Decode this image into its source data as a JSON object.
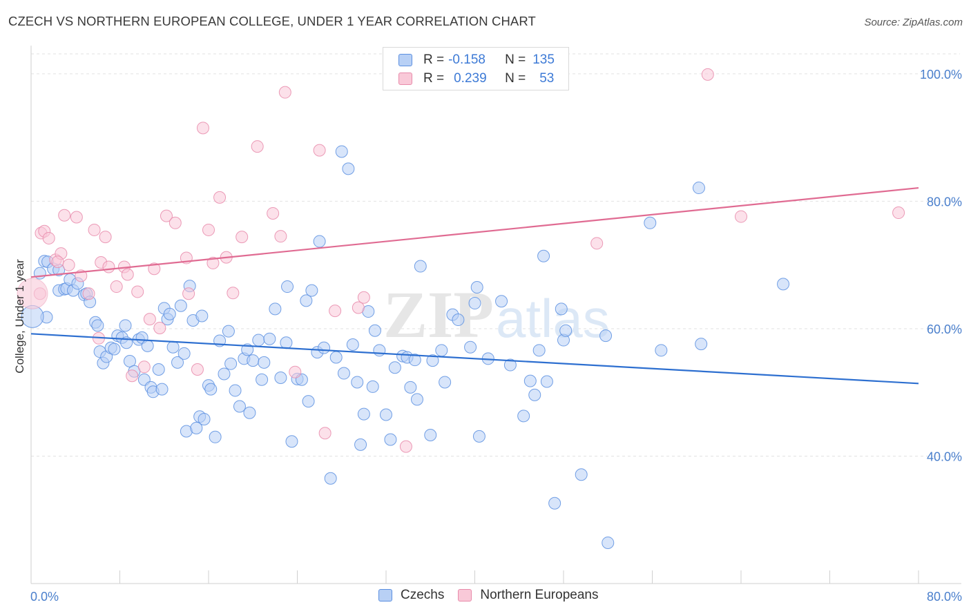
{
  "title": "CZECH VS NORTHERN EUROPEAN COLLEGE, UNDER 1 YEAR CORRELATION CHART",
  "source": "Source: ZipAtlas.com",
  "watermark": {
    "zip": "ZIP",
    "atlas": "atlas"
  },
  "legend": {
    "rows": [
      {
        "r_label": "R =",
        "r_value": "-0.158",
        "n_label": "N =",
        "n_value": "135",
        "color": "#5b8fe0",
        "fill": "#b8d0f5"
      },
      {
        "r_label": "R =",
        "r_value": "0.239",
        "n_label": "N =",
        "n_value": "53",
        "color": "#e88aaa",
        "fill": "#f9c9d8"
      }
    ]
  },
  "bottom_legend": [
    {
      "label": "Czechs",
      "color": "#5b8fe0",
      "fill": "#b8d0f5"
    },
    {
      "label": "Northern Europeans",
      "color": "#e88aaa",
      "fill": "#f9c9d8"
    }
  ],
  "chart_data": {
    "type": "scatter",
    "title": "CZECH VS NORTHERN EUROPEAN COLLEGE, UNDER 1 YEAR CORRELATION CHART",
    "ylabel": "College, Under 1 year",
    "xlabel": "",
    "xlim": [
      0,
      80
    ],
    "ylim": [
      20,
      104
    ],
    "x_tick_labels": [
      "0.0%",
      "80.0%"
    ],
    "y_ticks": [
      40,
      60,
      80,
      100
    ],
    "y_tick_labels": [
      "40.0%",
      "60.0%",
      "80.0%",
      "100.0%"
    ],
    "grid": true,
    "series": [
      {
        "name": "Czechs",
        "color": "#5b8fe0",
        "fill": "#b8d0f5",
        "trend": {
          "x": [
            0,
            80
          ],
          "y": [
            59.2,
            51.4
          ]
        },
        "points": [
          [
            0.8,
            68.7
          ],
          [
            1.2,
            70.6
          ],
          [
            1.5,
            70.5
          ],
          [
            2,
            69.4
          ],
          [
            2.5,
            69.2
          ],
          [
            2.5,
            66
          ],
          [
            3,
            66.2
          ],
          [
            3.2,
            66.3
          ],
          [
            3.5,
            67.7
          ],
          [
            3.8,
            66
          ],
          [
            4.2,
            67.1
          ],
          [
            4.8,
            65.3
          ],
          [
            5,
            65.5
          ],
          [
            5.3,
            64.2
          ],
          [
            5.8,
            61
          ],
          [
            6,
            60.5
          ],
          [
            6.2,
            56.4
          ],
          [
            6.5,
            54.6
          ],
          [
            6.8,
            55.6
          ],
          [
            7.2,
            57
          ],
          [
            7.5,
            56.8
          ],
          [
            7.8,
            58.9
          ],
          [
            8.2,
            58.6
          ],
          [
            8.5,
            60.5
          ],
          [
            8.6,
            57.8
          ],
          [
            8.9,
            54.9
          ],
          [
            9.3,
            53.3
          ],
          [
            9.7,
            58.3
          ],
          [
            10,
            58.6
          ],
          [
            10.2,
            52
          ],
          [
            10.5,
            57.3
          ],
          [
            10.8,
            50.8
          ],
          [
            11,
            50.1
          ],
          [
            11.5,
            53.6
          ],
          [
            11.8,
            50.5
          ],
          [
            12,
            63.2
          ],
          [
            12.3,
            61.5
          ],
          [
            12.5,
            62.3
          ],
          [
            12.8,
            57.1
          ],
          [
            13.2,
            54.7
          ],
          [
            13.5,
            63.6
          ],
          [
            13.8,
            56.1
          ],
          [
            14,
            43.9
          ],
          [
            14.3,
            66.7
          ],
          [
            14.6,
            61.3
          ],
          [
            14.9,
            44.4
          ],
          [
            15.2,
            46.2
          ],
          [
            15.4,
            62
          ],
          [
            15.6,
            45.8
          ],
          [
            16,
            51.1
          ],
          [
            16.2,
            50.5
          ],
          [
            16.6,
            43
          ],
          [
            17,
            58.1
          ],
          [
            17.4,
            52.9
          ],
          [
            17.8,
            59.6
          ],
          [
            18,
            54.5
          ],
          [
            18.4,
            50.3
          ],
          [
            18.8,
            47.8
          ],
          [
            19.2,
            55.3
          ],
          [
            19.5,
            56.7
          ],
          [
            19.7,
            46.8
          ],
          [
            20,
            55
          ],
          [
            20.5,
            58.2
          ],
          [
            20.8,
            52
          ],
          [
            21,
            54.7
          ],
          [
            21.5,
            58.4
          ],
          [
            22,
            63.1
          ],
          [
            22.5,
            52.3
          ],
          [
            23,
            57.8
          ],
          [
            23.1,
            66.6
          ],
          [
            23.5,
            42.3
          ],
          [
            24,
            52.1
          ],
          [
            24.4,
            52
          ],
          [
            24.8,
            64.4
          ],
          [
            25,
            48.6
          ],
          [
            25.3,
            66
          ],
          [
            25.8,
            56.3
          ],
          [
            26,
            73.7
          ],
          [
            26.4,
            57
          ],
          [
            27,
            36.5
          ],
          [
            27.5,
            55.5
          ],
          [
            28,
            87.8
          ],
          [
            28.2,
            53
          ],
          [
            28.6,
            85.1
          ],
          [
            29,
            57.5
          ],
          [
            29.4,
            51.6
          ],
          [
            29.7,
            41.8
          ],
          [
            30,
            46.6
          ],
          [
            30.4,
            62.7
          ],
          [
            30.8,
            50.9
          ],
          [
            31,
            59.7
          ],
          [
            31.4,
            56.6
          ],
          [
            32,
            46.5
          ],
          [
            32.4,
            42.6
          ],
          [
            32.8,
            53.9
          ],
          [
            33.5,
            55.7
          ],
          [
            33.9,
            55.5
          ],
          [
            34.2,
            50.8
          ],
          [
            34.6,
            55.1
          ],
          [
            34.8,
            48.9
          ],
          [
            35.1,
            69.8
          ],
          [
            36,
            43.3
          ],
          [
            36.2,
            55
          ],
          [
            37,
            56.6
          ],
          [
            37.3,
            51.6
          ],
          [
            38,
            62.2
          ],
          [
            38.5,
            61.4
          ],
          [
            39.6,
            57.1
          ],
          [
            40,
            64
          ],
          [
            40.2,
            66.5
          ],
          [
            40.4,
            43.1
          ],
          [
            41.2,
            55.3
          ],
          [
            42.4,
            64.3
          ],
          [
            43.2,
            54.3
          ],
          [
            44.4,
            46.3
          ],
          [
            45,
            51.8
          ],
          [
            45.4,
            49.6
          ],
          [
            45.8,
            56.6
          ],
          [
            46.2,
            71.4
          ],
          [
            46.5,
            51.7
          ],
          [
            47.2,
            32.6
          ],
          [
            47.8,
            63.1
          ],
          [
            48,
            58.2
          ],
          [
            48.2,
            59.7
          ],
          [
            49.6,
            37.1
          ],
          [
            51.8,
            58.9
          ],
          [
            52,
            26.4
          ],
          [
            55.8,
            76.6
          ],
          [
            56.8,
            56.6
          ],
          [
            60.2,
            82.1
          ],
          [
            60.4,
            57.6
          ],
          [
            67.8,
            67
          ],
          [
            1.4,
            61.8
          ]
        ]
      },
      {
        "name": "Northern Europeans",
        "color": "#e88aaa",
        "fill": "#f9c9d8",
        "trend": {
          "x": [
            0,
            80
          ],
          "y": [
            68.1,
            82.1
          ]
        },
        "points": [
          [
            0.8,
            65.5
          ],
          [
            0.9,
            75
          ],
          [
            1.2,
            75.3
          ],
          [
            1.6,
            74.2
          ],
          [
            2.2,
            70.8
          ],
          [
            2.7,
            71.8
          ],
          [
            3,
            77.8
          ],
          [
            3.4,
            70
          ],
          [
            4.1,
            77.5
          ],
          [
            4.5,
            68.3
          ],
          [
            5.2,
            65.5
          ],
          [
            5.7,
            75.5
          ],
          [
            6.1,
            58.5
          ],
          [
            6.3,
            70.4
          ],
          [
            6.7,
            74.4
          ],
          [
            7,
            69.7
          ],
          [
            7.7,
            66.6
          ],
          [
            8.4,
            69.7
          ],
          [
            8.7,
            68.5
          ],
          [
            9.1,
            52.6
          ],
          [
            9.6,
            65.8
          ],
          [
            10.2,
            54
          ],
          [
            10.7,
            61.5
          ],
          [
            11.1,
            69.4
          ],
          [
            11.6,
            60.1
          ],
          [
            12.2,
            77.7
          ],
          [
            13,
            76.6
          ],
          [
            14.2,
            65.5
          ],
          [
            14,
            71.1
          ],
          [
            15,
            53.6
          ],
          [
            15.5,
            91.5
          ],
          [
            16,
            75.5
          ],
          [
            16.4,
            70.3
          ],
          [
            17,
            80.6
          ],
          [
            17.6,
            71.2
          ],
          [
            18.2,
            65.6
          ],
          [
            19,
            74.4
          ],
          [
            20.4,
            88.6
          ],
          [
            21.8,
            78.1
          ],
          [
            22.5,
            74.5
          ],
          [
            22.9,
            97.1
          ],
          [
            23.8,
            53.2
          ],
          [
            26,
            88
          ],
          [
            26.5,
            43.6
          ],
          [
            27.4,
            62.8
          ],
          [
            29.5,
            63.3
          ],
          [
            30,
            64.9
          ],
          [
            33.8,
            41.5
          ],
          [
            51,
            73.4
          ],
          [
            61,
            99.9
          ],
          [
            64,
            77.6
          ],
          [
            78.2,
            78.2
          ],
          [
            2.4,
            70.5
          ]
        ]
      }
    ]
  }
}
